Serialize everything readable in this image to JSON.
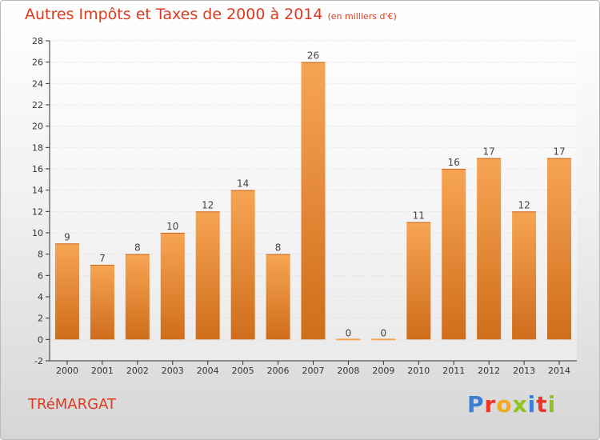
{
  "header": {
    "title": "Autres Impôts et Taxes de 2000 à 2014",
    "unit": "(en milliers d'€)"
  },
  "footer": {
    "commune": "TRéMARGAT",
    "logo": "Proxiti",
    "logo_colors": [
      "#3a7fd5",
      "#e9352a",
      "#f2a91e",
      "#8fc31f",
      "#3a7fd5",
      "#e9352a",
      "#8fc31f"
    ]
  },
  "colors": {
    "bar_light": "#f7a553",
    "bar_dark": "#cf6d1b",
    "title": "#de3a1f",
    "grid": "#d9d9d9",
    "axis": "#333333"
  },
  "chart_data": {
    "type": "bar",
    "title": "Autres Impôts et Taxes de 2000 à 2014",
    "subtitle": "(en milliers d'€)",
    "xlabel": "",
    "ylabel": "",
    "categories": [
      "2000",
      "2001",
      "2002",
      "2003",
      "2004",
      "2005",
      "2006",
      "2007",
      "2008",
      "2009",
      "2010",
      "2011",
      "2012",
      "2013",
      "2014"
    ],
    "values": [
      9,
      7,
      8,
      10,
      12,
      14,
      8,
      26,
      0,
      0,
      11,
      16,
      17,
      12,
      17
    ],
    "ylim": [
      -2,
      28
    ],
    "yticks": [
      -2,
      0,
      2,
      4,
      6,
      8,
      10,
      12,
      14,
      16,
      18,
      20,
      22,
      24,
      26,
      28
    ],
    "grid": true,
    "legend": "none"
  }
}
